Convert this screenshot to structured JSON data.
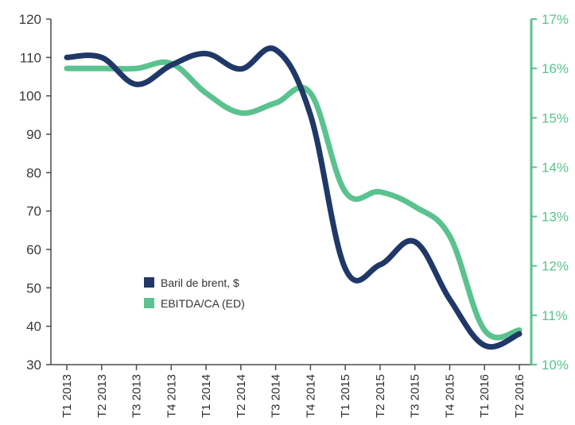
{
  "chart_data": {
    "type": "line",
    "categories": [
      "T1 2013",
      "T2 2013",
      "T3 2013",
      "T4 2013",
      "T1 2014",
      "T2 2014",
      "T3 2014",
      "T4 2014",
      "T1 2015",
      "T2 2015",
      "T3 2015",
      "T4 2015",
      "T1 2016",
      "T2 2016"
    ],
    "series": [
      {
        "name": "Baril de brent, $",
        "axis": "left",
        "color": "#1f3868",
        "values": [
          110,
          110,
          103,
          108,
          111,
          107,
          112,
          95,
          55,
          56,
          62,
          47,
          35,
          38
        ]
      },
      {
        "name": "EBITDA/CA (ED)",
        "axis": "right",
        "color": "#5bc28f",
        "values": [
          0.16,
          0.16,
          0.16,
          0.161,
          0.155,
          0.151,
          0.153,
          0.155,
          0.135,
          0.135,
          0.132,
          0.126,
          0.107,
          0.107
        ]
      }
    ],
    "yleft": {
      "ylim": [
        30,
        120
      ],
      "ticks": [
        30,
        40,
        50,
        60,
        70,
        80,
        90,
        100,
        110,
        120
      ]
    },
    "yright": {
      "ylim": [
        0.1,
        0.17
      ],
      "ticks": [
        0.1,
        0.11,
        0.12,
        0.13,
        0.14,
        0.15,
        0.16,
        0.17
      ],
      "tick_labels": [
        "10%",
        "11%",
        "12%",
        "13%",
        "14%",
        "15%",
        "16%",
        "17%"
      ],
      "color": "#5bc28f"
    },
    "legend": {
      "position": "center-left",
      "entries": [
        "Baril de brent, $",
        "EBITDA/CA (ED)"
      ]
    },
    "grid": false
  }
}
